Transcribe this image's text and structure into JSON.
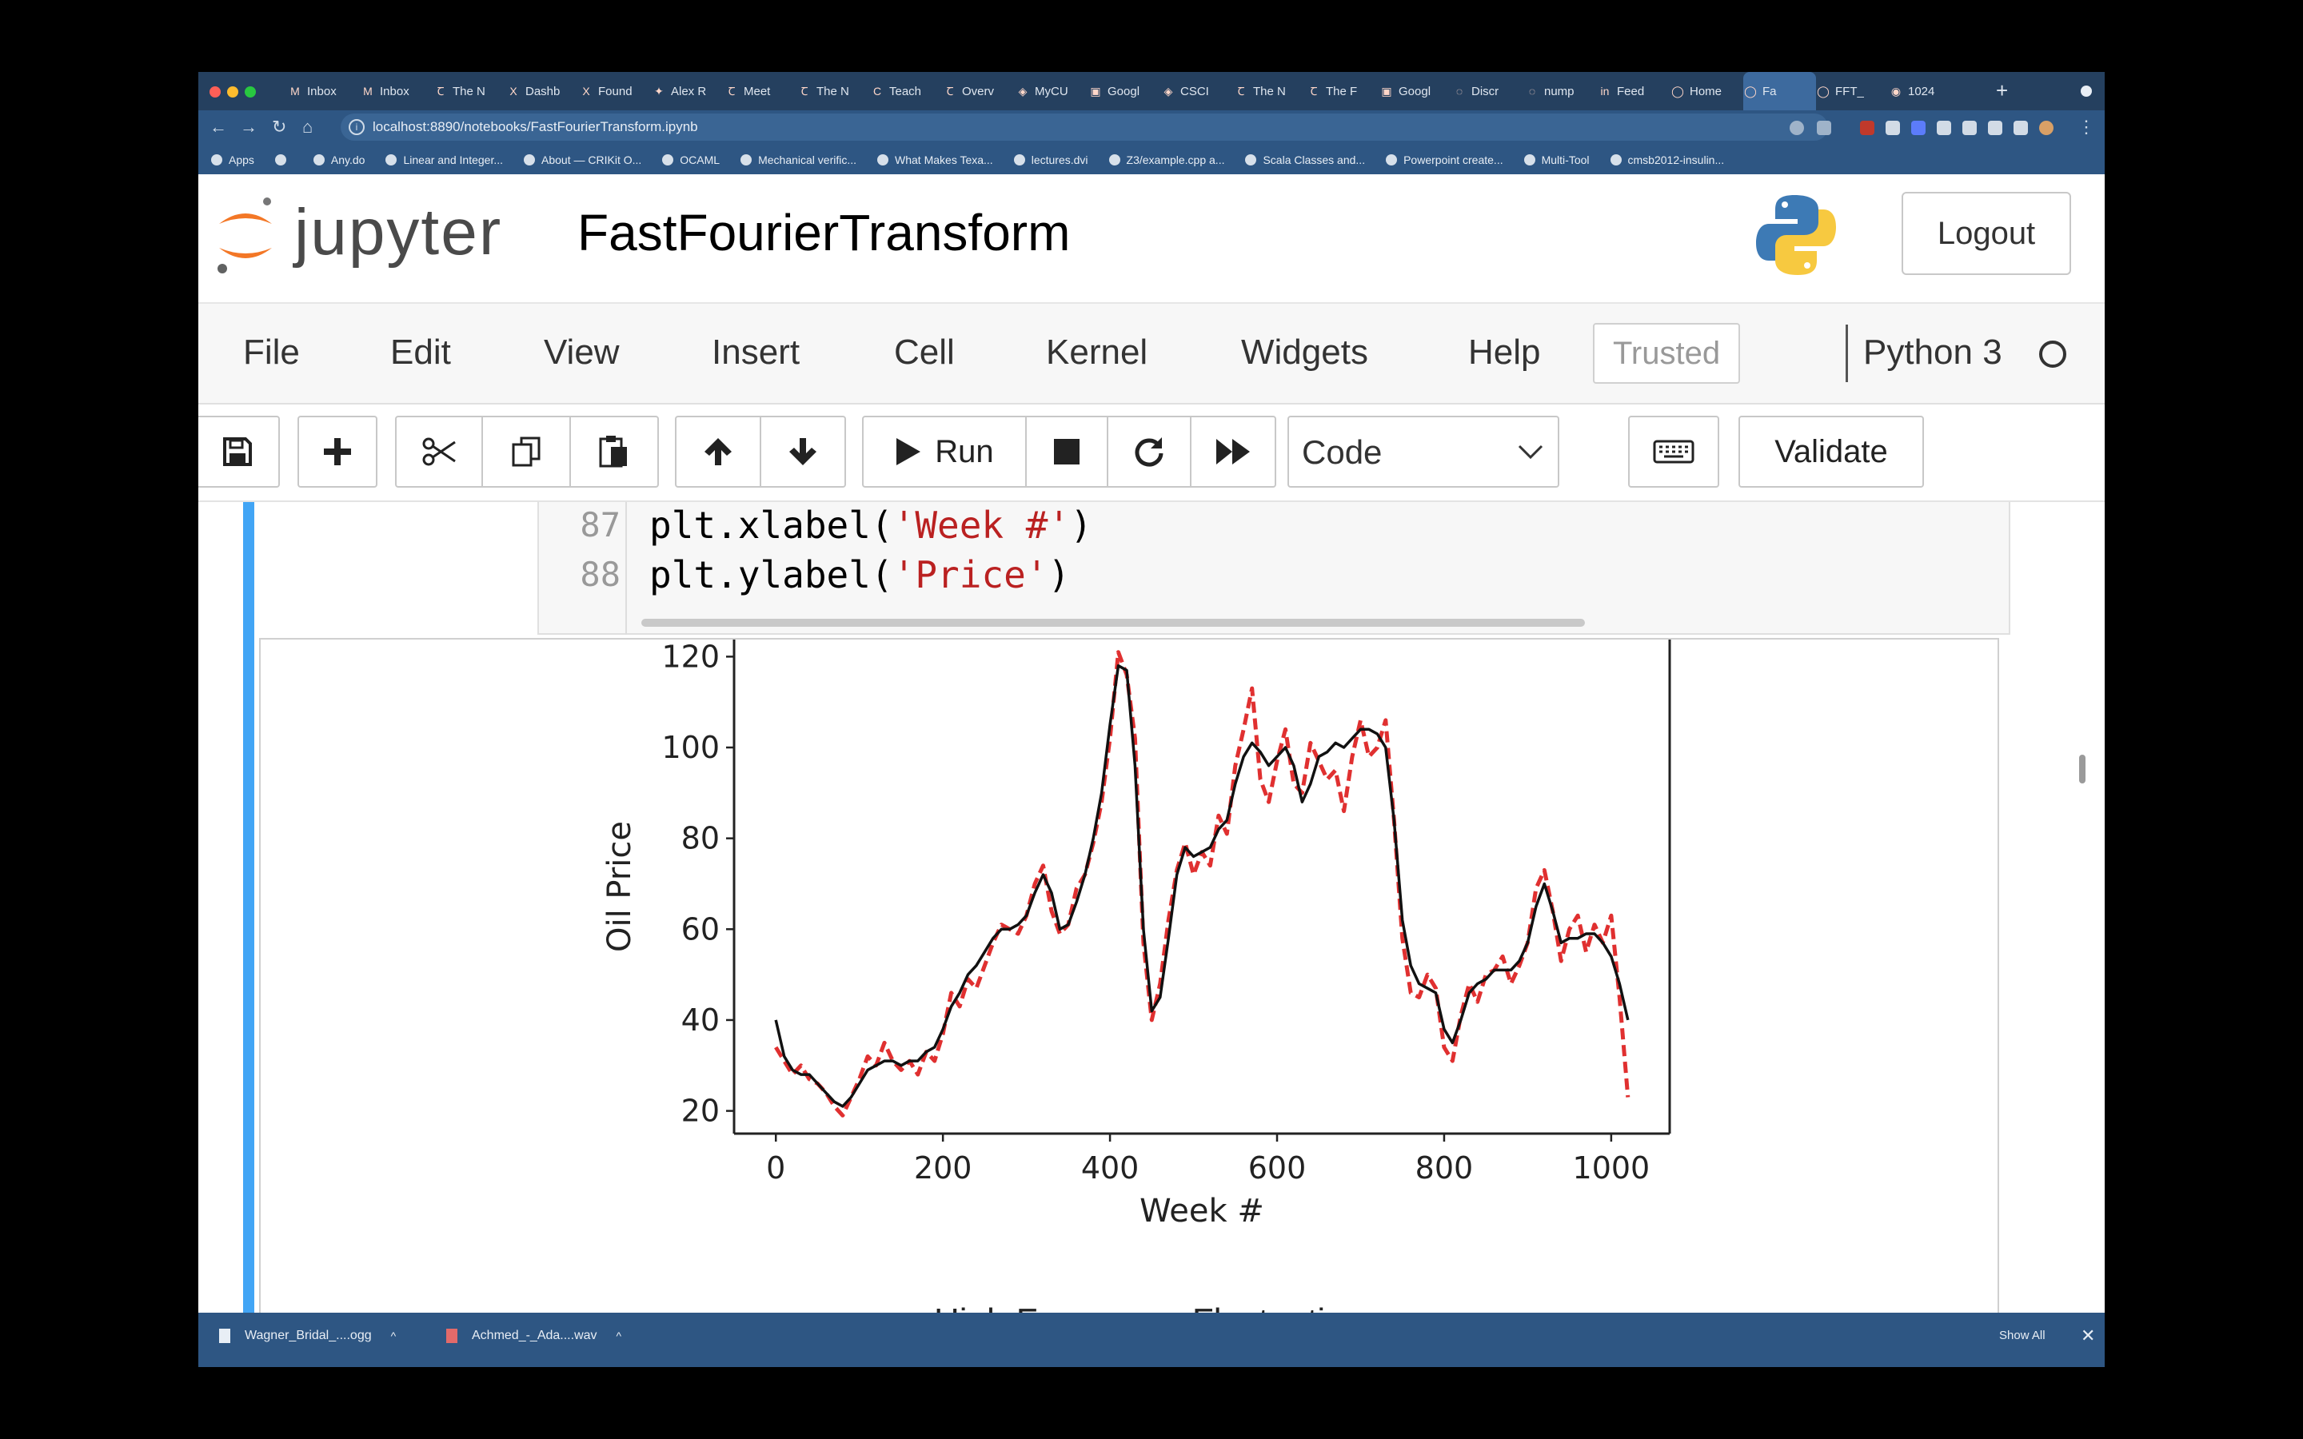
{
  "browser": {
    "tabs": [
      {
        "icon": "gmail-icon",
        "glyph": "M",
        "label": "Inbox"
      },
      {
        "icon": "gmail-icon",
        "glyph": "M",
        "label": "Inbox"
      },
      {
        "icon": "nyt-icon",
        "glyph": "Ꞇ",
        "label": "The N"
      },
      {
        "icon": "x-icon",
        "glyph": "X",
        "label": "Dashb"
      },
      {
        "icon": "x-icon",
        "glyph": "X",
        "label": "Found"
      },
      {
        "icon": "twitter-icon",
        "glyph": "✦",
        "label": "Alex R"
      },
      {
        "icon": "nyt-icon",
        "glyph": "Ꞇ",
        "label": "Meet"
      },
      {
        "icon": "nyt-icon",
        "glyph": "Ꞇ",
        "label": "The N"
      },
      {
        "icon": "c-icon",
        "glyph": "C",
        "label": "Teach"
      },
      {
        "icon": "nyt-icon",
        "glyph": "Ꞇ",
        "label": "Overv"
      },
      {
        "icon": "cu-icon",
        "glyph": "◈",
        "label": "MyCU"
      },
      {
        "icon": "google-icon",
        "glyph": "▣",
        "label": "Googl"
      },
      {
        "icon": "cu-icon",
        "glyph": "◈",
        "label": "CSCI"
      },
      {
        "icon": "nyt-icon",
        "glyph": "Ꞇ",
        "label": "The N"
      },
      {
        "icon": "nyt-icon",
        "glyph": "Ꞇ",
        "label": "The F"
      },
      {
        "icon": "google-icon",
        "glyph": "▣",
        "label": "Googl"
      },
      {
        "icon": "discord-icon",
        "glyph": "◌",
        "label": "Discr"
      },
      {
        "icon": "numpy-icon",
        "glyph": "◌",
        "label": "nump"
      },
      {
        "icon": "linkedin-icon",
        "glyph": "in",
        "label": "Feed"
      },
      {
        "icon": "jupyter-icon",
        "glyph": "◯",
        "label": "Home"
      },
      {
        "icon": "jupyter-icon",
        "glyph": "◯",
        "label": "Fa"
      },
      {
        "icon": "jupyter-icon",
        "glyph": "◯",
        "label": "FFT_"
      },
      {
        "icon": "chrome-icon",
        "glyph": "◉",
        "label": "1024"
      }
    ],
    "active_tab_index": 20,
    "url": "localhost:8890/notebooks/FastFourierTransform.ipynb",
    "bookmarks": [
      "Apps",
      "",
      "Any.do",
      "Linear and Integer...",
      "About — CRIKit O...",
      "OCAML",
      "Mechanical verific...",
      "What Makes Texa...",
      "lectures.dvi",
      "Z3/example.cpp a...",
      "Scala Classes and...",
      "Powerpoint create...",
      "Multi-Tool",
      "cmsb2012-insulin..."
    ]
  },
  "jupyter": {
    "logo_text": "jupyter",
    "notebook_title": "FastFourierTransform",
    "logout_label": "Logout",
    "menu": [
      "File",
      "Edit",
      "View",
      "Insert",
      "Cell",
      "Kernel",
      "Widgets",
      "Help"
    ],
    "trusted_label": "Trusted",
    "kernel_name": "Python 3",
    "run_label": "Run",
    "cell_type": "Code",
    "validate_label": "Validate"
  },
  "code_cell": {
    "lines": [
      {
        "num": "87",
        "pre": "plt.xlabel(",
        "str": "'Week #'",
        "post": ")"
      },
      {
        "num": "88",
        "pre": "plt.ylabel(",
        "str": "'Price'",
        "post": ")"
      }
    ]
  },
  "next_output_title": "High Frequency Fluctuations",
  "downloads": [
    {
      "name": "Wagner_Bridal_....ogg"
    },
    {
      "name": "Achmed_-_Ada....wav"
    }
  ],
  "show_all_label": "Show All",
  "colors": {
    "accent": "#42a5f5",
    "browser_chrome": "#2e5683",
    "raw_series": "#e03030",
    "smooth_series": "#111111"
  },
  "chart_data": {
    "type": "line",
    "xlabel": "Week #",
    "ylabel": "Oil Price",
    "xlim": [
      -50,
      1070
    ],
    "ylim": [
      15,
      122
    ],
    "xticks": [
      0,
      200,
      400,
      600,
      800,
      1000
    ],
    "yticks": [
      20,
      40,
      60,
      80,
      100,
      120
    ],
    "series": [
      {
        "style": "dashed-red",
        "x": [
          0,
          10,
          20,
          30,
          40,
          50,
          60,
          70,
          80,
          90,
          100,
          110,
          120,
          130,
          140,
          150,
          160,
          170,
          180,
          190,
          200,
          210,
          220,
          230,
          240,
          250,
          260,
          270,
          280,
          290,
          300,
          310,
          320,
          330,
          340,
          350,
          360,
          370,
          380,
          390,
          400,
          410,
          420,
          430,
          440,
          450,
          460,
          470,
          480,
          490,
          500,
          510,
          520,
          530,
          540,
          550,
          560,
          570,
          580,
          590,
          600,
          610,
          620,
          630,
          640,
          650,
          660,
          670,
          680,
          690,
          700,
          710,
          720,
          730,
          740,
          750,
          760,
          770,
          780,
          790,
          800,
          810,
          820,
          830,
          840,
          850,
          860,
          870,
          880,
          890,
          900,
          910,
          920,
          930,
          940,
          950,
          960,
          970,
          980,
          990,
          1000,
          1010,
          1020
        ],
        "y": [
          34,
          31,
          28,
          30,
          27,
          26,
          24,
          21,
          19,
          23,
          27,
          32,
          30,
          35,
          31,
          29,
          31,
          28,
          33,
          31,
          37,
          46,
          43,
          49,
          47,
          52,
          57,
          61,
          60,
          59,
          63,
          70,
          74,
          64,
          59,
          61,
          69,
          72,
          79,
          88,
          102,
          121,
          116,
          102,
          57,
          40,
          48,
          62,
          73,
          79,
          72,
          77,
          74,
          85,
          81,
          96,
          104,
          113,
          93,
          88,
          97,
          104,
          92,
          90,
          101,
          97,
          93,
          95,
          86,
          98,
          106,
          98,
          100,
          106,
          84,
          58,
          46,
          45,
          50,
          47,
          34,
          31,
          41,
          48,
          44,
          50,
          51,
          54,
          48,
          52,
          57,
          69,
          73,
          64,
          53,
          60,
          63,
          55,
          61,
          57,
          63,
          45,
          23
        ]
      },
      {
        "style": "solid-black",
        "x": [
          0,
          10,
          20,
          30,
          40,
          50,
          60,
          70,
          80,
          90,
          100,
          110,
          120,
          130,
          140,
          150,
          160,
          170,
          180,
          190,
          200,
          210,
          220,
          230,
          240,
          250,
          260,
          270,
          280,
          290,
          300,
          310,
          320,
          330,
          340,
          350,
          360,
          370,
          380,
          390,
          400,
          410,
          420,
          430,
          440,
          450,
          460,
          470,
          480,
          490,
          500,
          510,
          520,
          530,
          540,
          550,
          560,
          570,
          580,
          590,
          600,
          610,
          620,
          630,
          640,
          650,
          660,
          670,
          680,
          690,
          700,
          710,
          720,
          730,
          740,
          750,
          760,
          770,
          780,
          790,
          800,
          810,
          820,
          830,
          840,
          850,
          860,
          870,
          880,
          890,
          900,
          910,
          920,
          930,
          940,
          950,
          960,
          970,
          980,
          990,
          1000,
          1010,
          1020
        ],
        "y": [
          40,
          32,
          29,
          28,
          28,
          26,
          24,
          22,
          21,
          23,
          26,
          29,
          30,
          31,
          31,
          30,
          31,
          31,
          33,
          34,
          38,
          43,
          46,
          50,
          52,
          55,
          58,
          60,
          60,
          61,
          63,
          68,
          72,
          68,
          60,
          61,
          66,
          72,
          80,
          90,
          105,
          118,
          117,
          96,
          60,
          42,
          45,
          58,
          72,
          78,
          76,
          77,
          78,
          82,
          84,
          92,
          98,
          101,
          99,
          96,
          98,
          100,
          96,
          88,
          92,
          98,
          99,
          101,
          100,
          102,
          104,
          104,
          103,
          100,
          84,
          62,
          52,
          48,
          47,
          46,
          38,
          35,
          40,
          46,
          48,
          49,
          51,
          51,
          51,
          53,
          57,
          65,
          70,
          64,
          57,
          58,
          58,
          59,
          59,
          57,
          54,
          48,
          40
        ]
      }
    ]
  }
}
